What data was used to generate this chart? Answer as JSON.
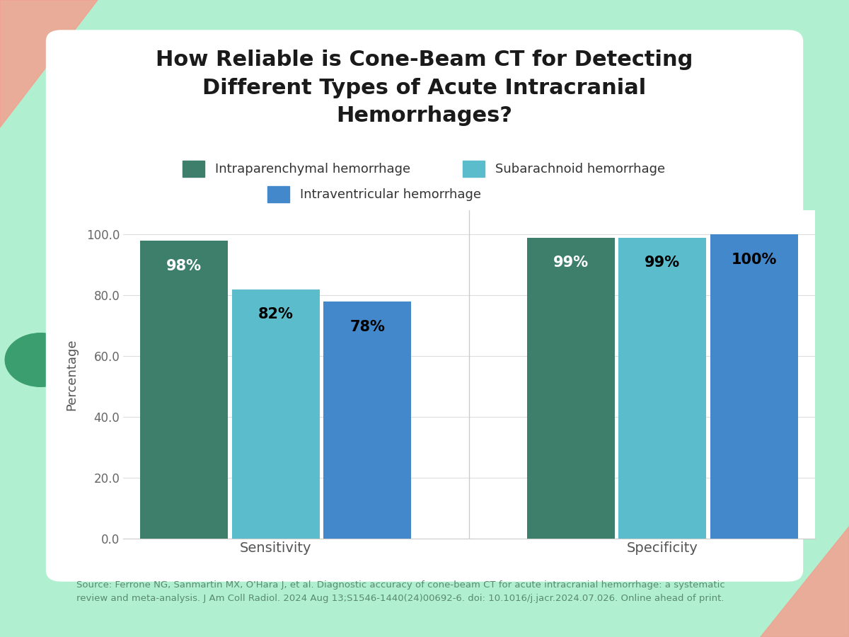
{
  "title": "How Reliable is Cone-Beam CT for Detecting\nDifferent Types of Acute Intracranial\nHemorrhages?",
  "categories": [
    "Sensitivity",
    "Specificity"
  ],
  "series": [
    {
      "label": "Intraparenchymal hemorrhage",
      "color": "#3d7f6b",
      "values": [
        98,
        99
      ]
    },
    {
      "label": "Subarachnoid hemorrhage",
      "color": "#5bbccc",
      "values": [
        82,
        99
      ]
    },
    {
      "label": "Intraventricular hemorrhage",
      "color": "#4488cc",
      "values": [
        78,
        100
      ]
    }
  ],
  "bar_labels": [
    [
      "98%",
      "82%",
      "78%"
    ],
    [
      "99%",
      "99%",
      "100%"
    ]
  ],
  "bar_label_colors": [
    [
      "white",
      "black",
      "black"
    ],
    [
      "white",
      "black",
      "black"
    ]
  ],
  "ylabel": "Percentage",
  "yticks": [
    0.0,
    20.0,
    40.0,
    60.0,
    80.0,
    100.0
  ],
  "ylim": [
    0,
    108
  ],
  "background_outer": "#b0f0d0",
  "background_inner": "#ffffff",
  "source_line1": "Source: Ferrone NG, Sanmartin MX, O'Hara J, et al. Diagnostic accuracy of cone-beam CT for acute intracranial hemorrhage: a systematic",
  "source_line2": "review and meta-analysis. J Am Coll Radiol. 2024 Aug 13;S1546-1440(24)00692-6. doi: 10.1016/j.jacr.2024.07.026. Online ahead of print.",
  "title_fontsize": 22,
  "legend_fontsize": 13,
  "bar_label_fontsize": 15,
  "axis_label_fontsize": 13,
  "tick_fontsize": 12,
  "source_fontsize": 9.5,
  "bar_width": 0.18,
  "decoration_circle_color": "#3a9e6e",
  "decoration_triangle_color": "#f4a090",
  "group_centers": [
    0.32,
    1.08
  ]
}
